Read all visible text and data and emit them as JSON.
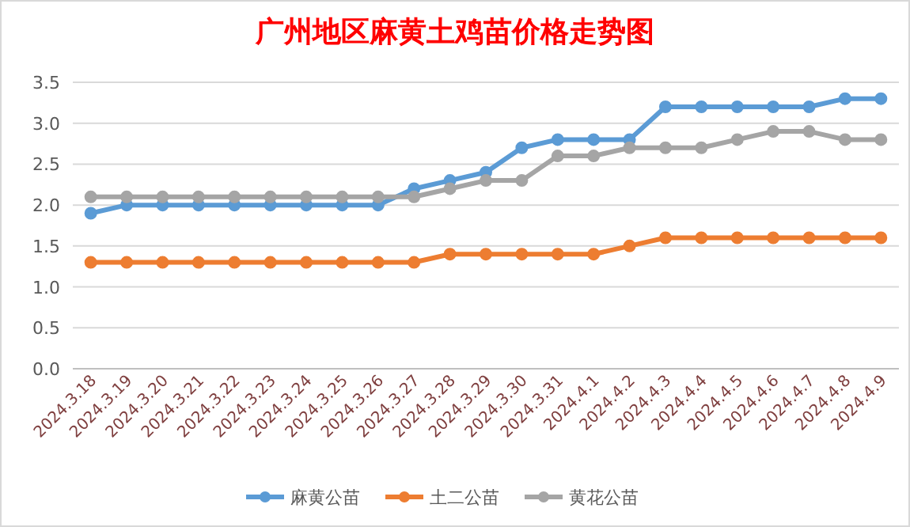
{
  "chart_data": {
    "type": "line",
    "title": "广州地区麻黄土鸡苗价格走势图",
    "categories": [
      "2024.3.18",
      "2024.3.19",
      "2024.3.20",
      "2024.3.21",
      "2024.3.22",
      "2024.3.23",
      "2024.3.24",
      "2024.3.25",
      "2024.3.26",
      "2024.3.27",
      "2024.3.28",
      "2024.3.29",
      "2024.3.30",
      "2024.3.31",
      "2024.4.1",
      "2024.4.2",
      "2024.4.3",
      "2024.4.4",
      "2024.4.5",
      "2024.4.6",
      "2024.4.7",
      "2024.4.8",
      "2024.4.9"
    ],
    "series": [
      {
        "name": "麻黄公苗",
        "color": "#5b9bd5",
        "values": [
          1.9,
          2.0,
          2.0,
          2.0,
          2.0,
          2.0,
          2.0,
          2.0,
          2.0,
          2.2,
          2.3,
          2.4,
          2.7,
          2.8,
          2.8,
          2.8,
          3.2,
          3.2,
          3.2,
          3.2,
          3.2,
          3.3,
          3.3
        ]
      },
      {
        "name": "土二公苗",
        "color": "#ed7d31",
        "values": [
          1.3,
          1.3,
          1.3,
          1.3,
          1.3,
          1.3,
          1.3,
          1.3,
          1.3,
          1.3,
          1.4,
          1.4,
          1.4,
          1.4,
          1.4,
          1.5,
          1.6,
          1.6,
          1.6,
          1.6,
          1.6,
          1.6,
          1.6
        ]
      },
      {
        "name": "黄花公苗",
        "color": "#a5a5a5",
        "values": [
          2.1,
          2.1,
          2.1,
          2.1,
          2.1,
          2.1,
          2.1,
          2.1,
          2.1,
          2.1,
          2.2,
          2.3,
          2.3,
          2.6,
          2.6,
          2.7,
          2.7,
          2.7,
          2.8,
          2.9,
          2.9,
          2.8,
          2.8
        ]
      }
    ],
    "ylim": [
      0,
      3.5
    ],
    "yticks": [
      {
        "value": 0,
        "label": "0.0"
      },
      {
        "value": 0.5,
        "label": "0.5"
      },
      {
        "value": 1,
        "label": "1.0"
      },
      {
        "value": 1.5,
        "label": "1.5"
      },
      {
        "value": 2,
        "label": "2.0"
      },
      {
        "value": 2.5,
        "label": "2.5"
      },
      {
        "value": 3,
        "label": "3.0"
      },
      {
        "value": 3.5,
        "label": "3.5"
      }
    ],
    "grid": "y",
    "legend": "bottom",
    "marker": "circle",
    "line_style": "solid"
  }
}
